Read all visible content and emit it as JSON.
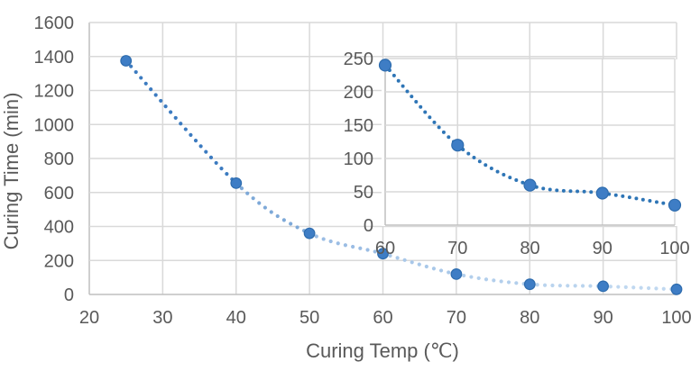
{
  "style": {
    "background": "#ffffff",
    "grid_color": "#d9d9d9",
    "axis_line_color": "#bfbfbf",
    "tick_label_color": "#595959",
    "axis_title_color": "#595959"
  },
  "chart_data": [
    {
      "name": "curing-time-vs-temp-main",
      "type": "scatter",
      "title": "",
      "xlabel": "Curing Temp (℃)",
      "ylabel": "Curing Time (min)",
      "x": [
        25,
        40,
        50,
        60,
        70,
        80,
        90,
        100
      ],
      "y": [
        1375,
        655,
        360,
        240,
        120,
        60,
        48,
        30
      ],
      "xlim": [
        20,
        100
      ],
      "ylim": [
        0,
        1600
      ],
      "xticks": [
        20,
        30,
        40,
        50,
        60,
        70,
        80,
        90,
        100
      ],
      "yticks": [
        0,
        200,
        400,
        600,
        800,
        1000,
        1200,
        1400,
        1600
      ],
      "grid": true,
      "legend": false,
      "line": {
        "style": "dotted-smooth",
        "segment_colors": [
          "#3c7bc0",
          "#7ea9d8",
          "#9bbde4",
          "#a9c8e9",
          "#b3cfec",
          "#bad4ee",
          "#c0d8f0"
        ]
      },
      "marker": {
        "shape": "circle",
        "fill": "#3e7dc5",
        "stroke": "#2e6cae"
      }
    },
    {
      "name": "inset-zoom-60-100",
      "type": "scatter",
      "title": "",
      "xlabel": "",
      "ylabel": "",
      "x": [
        60,
        70,
        80,
        90,
        100
      ],
      "y": [
        240,
        120,
        60,
        48,
        30
      ],
      "xlim": [
        60,
        100
      ],
      "ylim": [
        0,
        250
      ],
      "xticks": [
        60,
        70,
        80,
        90,
        100
      ],
      "yticks": [
        0,
        50,
        100,
        150,
        200,
        250
      ],
      "grid": true,
      "legend": false,
      "line": {
        "style": "dotted-smooth",
        "color": "#2e75b6"
      },
      "marker": {
        "shape": "circle",
        "fill": "#3e7dc5",
        "stroke": "#2e6cae"
      }
    }
  ]
}
